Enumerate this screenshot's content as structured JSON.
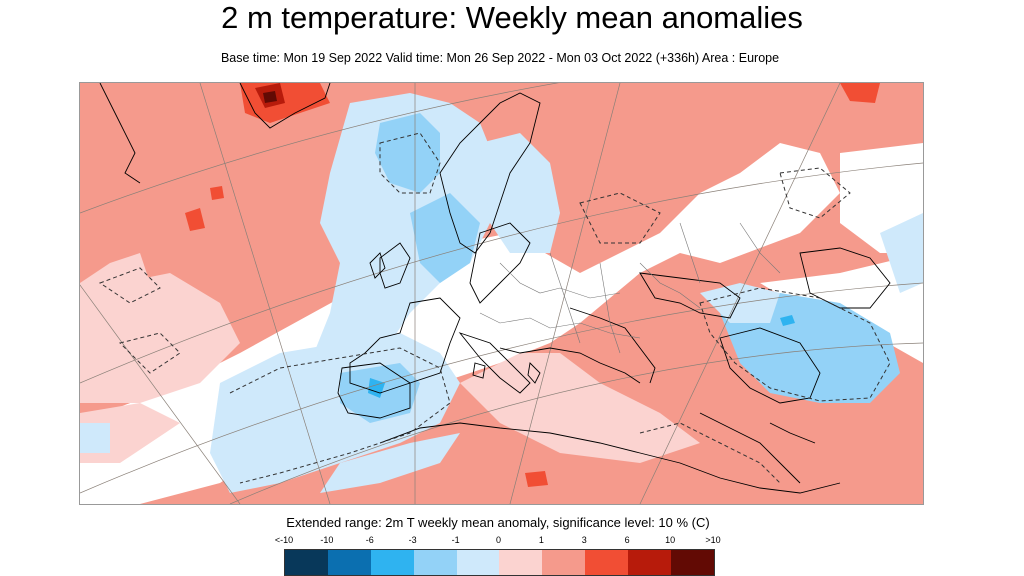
{
  "title": "2 m temperature: Weekly mean anomalies",
  "subtitle": "Base time: Mon 19 Sep 2022 Valid time: Mon 26 Sep 2022 - Mon 03 Oct 2022 (+336h) Area : Europe",
  "map": {
    "area": "Europe",
    "variable": "2m temperature weekly mean anomaly",
    "significance_contour": "dashed"
  },
  "legend": {
    "caption": "Extended range: 2m T weekly mean anomaly, significance level: 10 % (C)",
    "ticks": [
      "<-10",
      "-10",
      "-6",
      "-3",
      "-1",
      "0",
      "1",
      "3",
      "6",
      "10",
      ">10"
    ],
    "swatches": [
      {
        "range": "<-10",
        "color": "#08385a"
      },
      {
        "range": "-10 to -6",
        "color": "#0b6fb0"
      },
      {
        "range": "-6 to -3",
        "color": "#2fb3f0"
      },
      {
        "range": "-3 to -1",
        "color": "#93d2f7"
      },
      {
        "range": "-1 to 0",
        "color": "#cfe9fb"
      },
      {
        "range": "0 to 1",
        "color": "#fbd3d0"
      },
      {
        "range": "1 to 3",
        "color": "#f59a8c"
      },
      {
        "range": "3 to 6",
        "color": "#f14e34"
      },
      {
        "range": "6 to 10",
        "color": "#b71b0b"
      },
      {
        "range": ">10",
        "color": "#620a04"
      }
    ]
  }
}
